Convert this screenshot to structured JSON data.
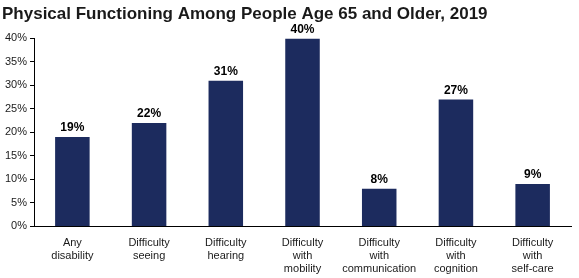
{
  "chart_data": {
    "type": "bar",
    "title": "Physical Functioning Among People Age 65 and Older, 2019",
    "categories": [
      "Any disability",
      "Difficulty seeing",
      "Difficulty hearing",
      "Difficulty with mobility",
      "Difficulty with communication",
      "Difficulty with cognition",
      "Difficulty with self-care"
    ],
    "values": [
      19,
      22,
      31,
      40,
      8,
      27,
      9
    ],
    "value_labels": [
      "19%",
      "22%",
      "31%",
      "40%",
      "8%",
      "27%",
      "9%"
    ],
    "color": "#1c2b5e",
    "ylim": [
      0,
      40
    ],
    "yticks": [
      {
        "value": 0,
        "label": "0%"
      },
      {
        "value": 5,
        "label": "5%"
      },
      {
        "value": 10,
        "label": "10%"
      },
      {
        "value": 15,
        "label": "15%"
      },
      {
        "value": 20,
        "label": "20%"
      },
      {
        "value": 25,
        "label": "25%"
      },
      {
        "value": 30,
        "label": "30%"
      },
      {
        "value": 35,
        "label": "35%"
      },
      {
        "value": 40,
        "label": "40%"
      }
    ],
    "grid": false,
    "data_labels": true
  }
}
